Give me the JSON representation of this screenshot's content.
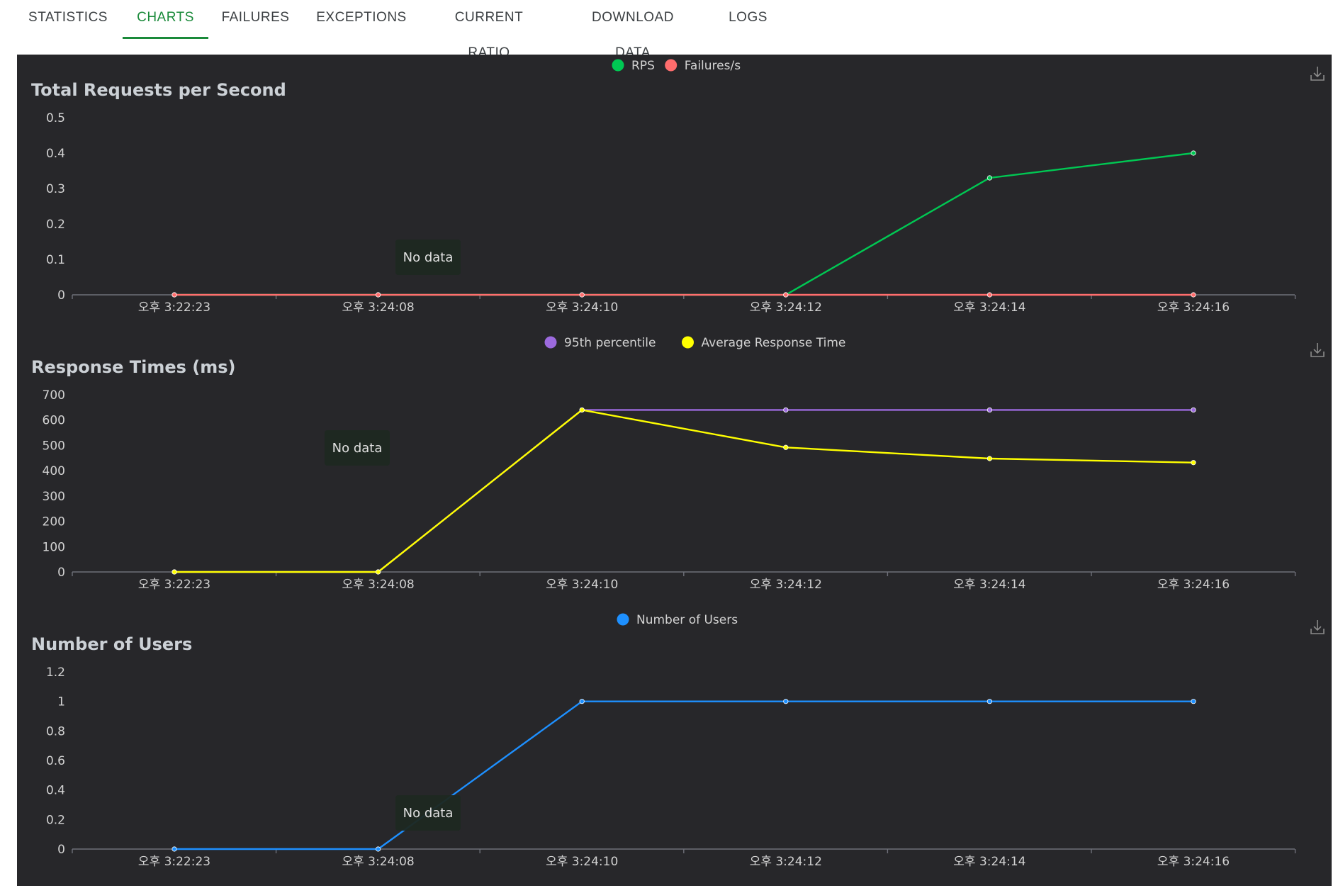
{
  "tabs": [
    {
      "label": "STATISTICS",
      "active": false
    },
    {
      "label": "CHARTS",
      "active": true
    },
    {
      "label": "FAILURES",
      "active": false
    },
    {
      "label": "EXCEPTIONS",
      "active": false
    },
    {
      "label": "CURRENT RATIO",
      "active": false
    },
    {
      "label": "DOWNLOAD DATA",
      "active": false
    },
    {
      "label": "LOGS",
      "active": false
    }
  ],
  "icons": {
    "download": "download-icon"
  },
  "colors": {
    "accent": "#1a8a3a",
    "panel_bg": "#27272a"
  },
  "tooltip_text": "No data",
  "chart_data": [
    {
      "type": "line",
      "title": "Total Requests per Second",
      "x": [
        "오후 3:22:23",
        "오후 3:24:08",
        "오후 3:24:10",
        "오후 3:24:12",
        "오후 3:24:14",
        "오후 3:24:16"
      ],
      "ylim": [
        0,
        0.5
      ],
      "yticks": [
        0,
        0.1,
        0.2,
        0.3,
        0.4,
        0.5
      ],
      "legend_position": "top-center",
      "series": [
        {
          "name": "RPS",
          "color": "#00c853",
          "values": [
            0,
            0,
            0,
            0,
            0.33,
            0.4
          ]
        },
        {
          "name": "Failures/s",
          "color": "#ff6d6d",
          "values": [
            0,
            0,
            0,
            0,
            0,
            0
          ]
        }
      ]
    },
    {
      "type": "line",
      "title": "Response Times (ms)",
      "x": [
        "오후 3:22:23",
        "오후 3:24:08",
        "오후 3:24:10",
        "오후 3:24:12",
        "오후 3:24:14",
        "오후 3:24:16"
      ],
      "ylim": [
        0,
        700
      ],
      "yticks": [
        0,
        100,
        200,
        300,
        400,
        500,
        600,
        700
      ],
      "legend_position": "top-center",
      "series": [
        {
          "name": "95th percentile",
          "color": "#9c6ade",
          "values": [
            0,
            0,
            640,
            640,
            640,
            640
          ]
        },
        {
          "name": "Average Response Time",
          "color": "#ffff00",
          "values": [
            0,
            0,
            640,
            492,
            448,
            432
          ]
        }
      ]
    },
    {
      "type": "line",
      "title": "Number of Users",
      "x": [
        "오후 3:22:23",
        "오후 3:24:08",
        "오후 3:24:10",
        "오후 3:24:12",
        "오후 3:24:14",
        "오후 3:24:16"
      ],
      "ylim": [
        0,
        1.2
      ],
      "yticks": [
        0,
        0.2,
        0.4,
        0.6,
        0.8,
        1,
        1.2
      ],
      "legend_position": "top-center",
      "series": [
        {
          "name": "Number of Users",
          "color": "#1e90ff",
          "values": [
            0,
            0,
            1,
            1,
            1,
            1
          ]
        }
      ]
    }
  ]
}
